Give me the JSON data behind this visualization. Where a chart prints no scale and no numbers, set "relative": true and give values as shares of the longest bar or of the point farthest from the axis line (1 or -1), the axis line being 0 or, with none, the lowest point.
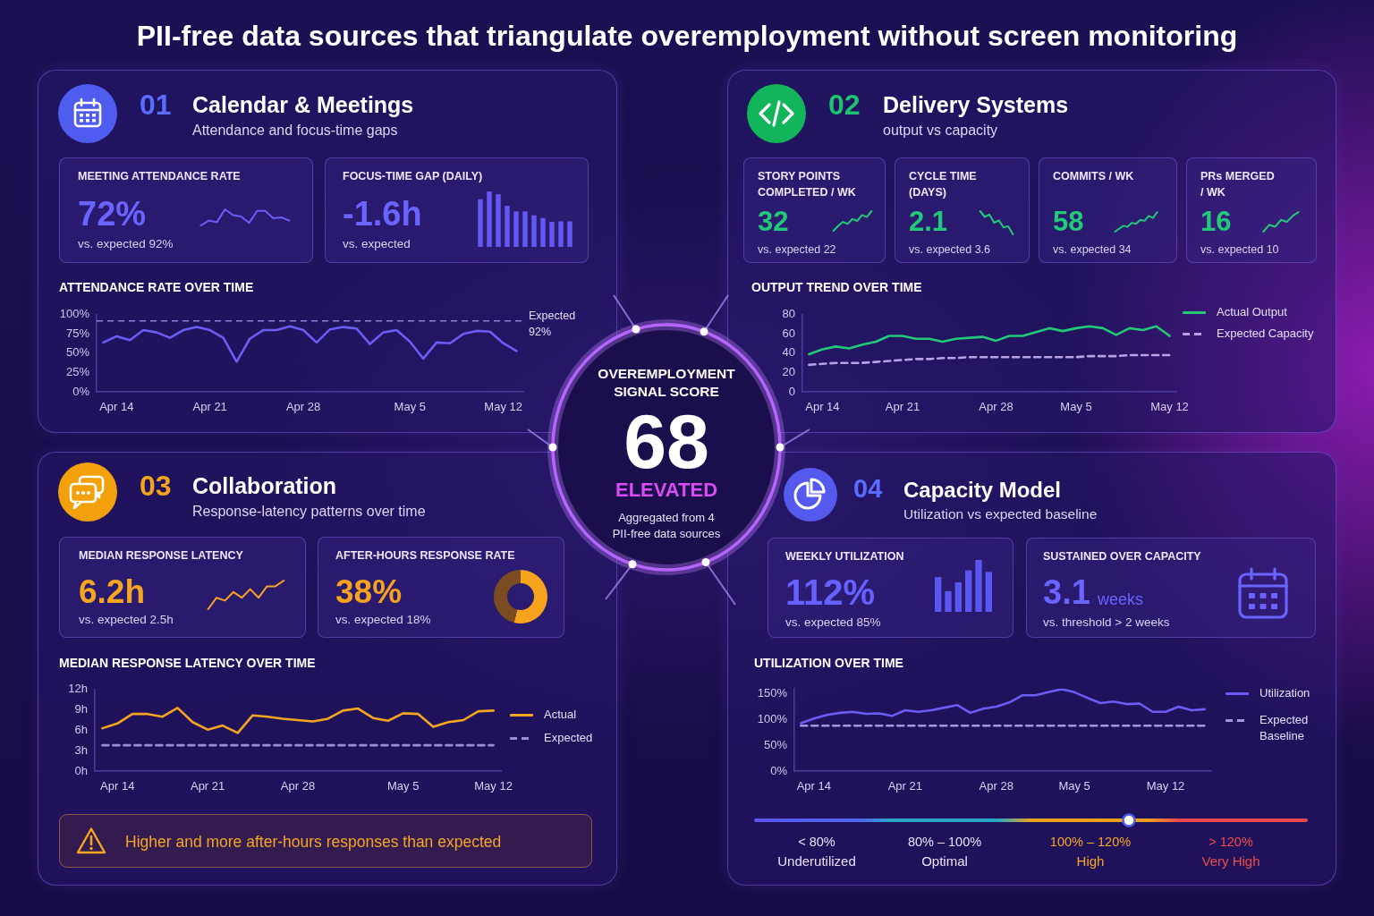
{
  "chart_data": [
    {
      "type": "other",
      "title": "PII-free data sources that triangulate overemployment without screen monitoring"
    },
    {
      "type": "other",
      "title": "Calendar & Meetings",
      "subtitle": "Attendance and focus-time gaps",
      "annotations": [
        "01"
      ]
    },
    {
      "type": "other",
      "title": "MEETING ATTENDANCE RATE",
      "annotations": [
        "72%",
        "vs. expected 92%"
      ]
    },
    {
      "type": "line",
      "relative": true,
      "categories": [
        null,
        null,
        null,
        null,
        null,
        null,
        null,
        null,
        null,
        null,
        null,
        null
      ],
      "color": "#6b5cf6",
      "values": [
        0,
        0.3,
        0.2,
        1,
        0.64,
        0.56,
        0.16,
        0.9,
        0.9,
        0.44,
        0.5,
        0.3
      ]
    },
    {
      "type": "other",
      "title": "FOCUS-TIME GAP (DAILY)",
      "annotations": [
        "-1.6h",
        "vs. expected"
      ]
    },
    {
      "type": "bar",
      "relative": true,
      "categories": [
        null,
        null,
        null,
        null,
        null,
        null,
        null,
        null,
        null,
        null,
        null
      ],
      "color": "#6358f0",
      "values": [
        0.86,
        1,
        0.95,
        0.74,
        0.64,
        0.64,
        0.57,
        0.52,
        0.45,
        0.46,
        0.46
      ]
    },
    {
      "type": "line",
      "title": "ATTENDANCE RATE OVER TIME",
      "categories": [
        null,
        "Apr 14",
        null,
        null,
        null,
        null,
        null,
        null,
        "Apr 21",
        null,
        null,
        null,
        null,
        null,
        null,
        "Apr 28",
        null,
        null,
        null,
        null,
        null,
        null,
        null,
        "May 5",
        null,
        null,
        null,
        null,
        null,
        null,
        "May 12",
        null
      ],
      "color": "#6b5cf6",
      "values": [
        64,
        72,
        67,
        80,
        77,
        70,
        80,
        84,
        80,
        70,
        39,
        69,
        80,
        80,
        85,
        80,
        64,
        81,
        84,
        82,
        62,
        77,
        80,
        65,
        43,
        64,
        63,
        75,
        79,
        78,
        63,
        53
      ],
      "ylim": [
        0,
        100
      ],
      "yticks": [
        {
          "value": 0,
          "label": "0%"
        },
        {
          "value": 25,
          "label": "25%"
        },
        {
          "value": 50,
          "label": "50%"
        },
        {
          "value": 75,
          "label": "75%"
        },
        {
          "value": 100,
          "label": "100%"
        }
      ],
      "ref_lines": [
        {
          "axis": "y",
          "value": 92,
          "label": "Expected 92%",
          "color": "#8c80d9",
          "line_style": "dashed"
        }
      ]
    },
    {
      "type": "other",
      "title": "Delivery Systems",
      "subtitle": "output vs capacity",
      "annotations": [
        "02"
      ]
    },
    {
      "type": "other",
      "title": "STORY POINTS COMPLETED / WK",
      "annotations": [
        "32",
        "vs. expected 22"
      ]
    },
    {
      "type": "line",
      "relative": true,
      "categories": [
        null,
        null,
        null,
        null,
        null,
        null,
        null,
        null,
        null
      ],
      "color": "#22c978",
      "values": [
        0,
        0.25,
        0.45,
        0.35,
        0.6,
        0.5,
        0.8,
        0.7,
        1
      ]
    },
    {
      "type": "other",
      "title": "CYCLE TIME (DAYS)",
      "annotations": [
        "2.1",
        "vs. expected 3.6"
      ]
    },
    {
      "type": "line",
      "relative": true,
      "categories": [
        null,
        null,
        null,
        null,
        null,
        null,
        null,
        null
      ],
      "color": "#22c978",
      "values": [
        1,
        0.75,
        0.85,
        0.5,
        0.6,
        0.3,
        0.35,
        0
      ]
    },
    {
      "type": "other",
      "title": "COMMITS / WK",
      "annotations": [
        "58",
        "vs. expected 34"
      ]
    },
    {
      "type": "line",
      "relative": true,
      "categories": [
        null,
        null,
        null,
        null,
        null,
        null,
        null,
        null,
        null,
        null,
        null
      ],
      "color": "#22c978",
      "values": [
        0,
        0.15,
        0.3,
        0.25,
        0.45,
        0.4,
        0.6,
        0.55,
        0.8,
        0.7,
        1
      ]
    },
    {
      "type": "other",
      "title": "PRs MERGED / WK",
      "annotations": [
        "16",
        "vs. expected 10"
      ]
    },
    {
      "type": "line",
      "relative": true,
      "categories": [
        null,
        null,
        null,
        null,
        null,
        null,
        null
      ],
      "color": "#22c978",
      "values": [
        0,
        0.35,
        0.25,
        0.6,
        0.5,
        0.8,
        1
      ]
    },
    {
      "type": "line",
      "title": "OUTPUT TREND OVER TIME",
      "categories": [
        null,
        "Apr 14",
        null,
        null,
        null,
        null,
        null,
        "Apr 21",
        null,
        null,
        null,
        null,
        null,
        null,
        "Apr 28",
        null,
        null,
        null,
        null,
        null,
        "May 5",
        null,
        null,
        null,
        null,
        null,
        null,
        "May 12"
      ],
      "series": [
        {
          "name": "Actual Output",
          "color": "#22c978",
          "values": [
            39,
            44,
            47,
            45,
            49,
            52,
            58,
            58,
            55,
            55,
            52,
            55,
            56,
            57,
            53,
            58,
            58,
            62,
            66,
            63,
            66,
            68,
            66,
            59,
            66,
            64,
            68,
            58
          ]
        },
        {
          "name": "Expected Capacity",
          "color": "#b7a2e6",
          "line_style": "dashed",
          "values": [
            28,
            29,
            30,
            30,
            30,
            31,
            32,
            33,
            34,
            34,
            35,
            35,
            36,
            36,
            36,
            36,
            36,
            36,
            36,
            36,
            36,
            37,
            37,
            37,
            38,
            38,
            38,
            38
          ]
        }
      ],
      "ylim": [
        0,
        80
      ],
      "yticks": [
        0,
        20,
        40,
        60,
        80
      ],
      "legend": "right"
    },
    {
      "type": "other",
      "title": "OVEREMPLOYMENT SIGNAL SCORE",
      "annotations": [
        "68",
        "ELEVATED",
        "Aggregated from 4 PII-free data sources"
      ]
    },
    {
      "type": "other",
      "title": "Collaboration",
      "subtitle": "Response-latency patterns over time",
      "annotations": [
        "03"
      ]
    },
    {
      "type": "other",
      "title": "MEDIAN RESPONSE LATENCY",
      "annotations": [
        "6.2h",
        "vs. expected 2.5h"
      ]
    },
    {
      "type": "line",
      "relative": true,
      "categories": [
        null,
        null,
        null,
        null,
        null,
        null,
        null,
        null,
        null,
        null
      ],
      "color": "#f5a51f",
      "values": [
        0,
        0.4,
        0.3,
        0.6,
        0.4,
        0.7,
        0.4,
        0.8,
        0.8,
        1
      ]
    },
    {
      "type": "other",
      "title": "AFTER-HOURS RESPONSE RATE",
      "annotations": [
        "38%",
        "vs. expected 18%"
      ]
    },
    {
      "type": "donut",
      "categories": [
        null,
        null
      ],
      "values": [
        54,
        46
      ],
      "colors": [
        "#f5a31c",
        "#7b4c22"
      ]
    },
    {
      "type": "line",
      "title": "MEDIAN RESPONSE LATENCY OVER TIME",
      "categories": [
        null,
        "Apr 14",
        null,
        null,
        null,
        null,
        null,
        "Apr 21",
        null,
        null,
        null,
        null,
        null,
        "Apr 28",
        null,
        null,
        null,
        null,
        null,
        null,
        "May 5",
        null,
        null,
        null,
        null,
        null,
        "May 12"
      ],
      "series": [
        {
          "name": "Actual",
          "color": "#f5a51f",
          "values": [
            6.3,
            7.0,
            8.4,
            8.4,
            8.0,
            9.3,
            7.2,
            6.1,
            6.7,
            5.6,
            8.2,
            8.0,
            7.7,
            7.5,
            7.3,
            7.7,
            8.9,
            9.2,
            7.8,
            7.4,
            8.5,
            8.4,
            6.5,
            7.2,
            7.5,
            8.8,
            8.9
          ]
        },
        {
          "name": "Expected",
          "color": "#9a8fd1",
          "line_style": "dashed",
          "values": [
            3.8,
            3.8,
            3.8,
            3.8,
            3.8,
            3.8,
            3.8,
            3.8,
            3.8,
            3.8,
            3.8,
            3.8,
            3.8,
            3.8,
            3.8,
            3.8,
            3.8,
            3.8,
            3.8,
            3.8,
            3.8,
            3.8,
            3.8,
            3.8,
            3.8,
            3.8,
            3.8
          ]
        }
      ],
      "ylim": [
        0,
        12
      ],
      "yticks": [
        {
          "value": 0,
          "label": "0h"
        },
        {
          "value": 3,
          "label": "3h"
        },
        {
          "value": 6,
          "label": "6h"
        },
        {
          "value": 9,
          "label": "9h"
        },
        {
          "value": 12,
          "label": "12h"
        }
      ],
      "legend": "right"
    },
    {
      "type": "other",
      "annotations": [
        "Higher and more after-hours responses than expected"
      ]
    },
    {
      "type": "other",
      "title": "Capacity Model",
      "subtitle": "Utilization vs expected baseline",
      "annotations": [
        "04"
      ]
    },
    {
      "type": "other",
      "title": "WEEKLY UTILIZATION",
      "annotations": [
        "112%",
        "vs. expected 85%"
      ]
    },
    {
      "type": "bar",
      "relative": true,
      "categories": [
        null,
        null,
        null,
        null,
        null,
        null
      ],
      "color": "#5b55f2",
      "values": [
        0.67,
        0.4,
        0.57,
        0.8,
        1,
        0.77
      ]
    },
    {
      "type": "other",
      "title": "SUSTAINED OVER CAPACITY",
      "annotations": [
        "3.1",
        "weeks",
        "vs. threshold > 2 weeks"
      ]
    },
    {
      "type": "line",
      "title": "UTILIZATION OVER TIME",
      "categories": [
        null,
        "Apr 14",
        null,
        null,
        null,
        null,
        null,
        null,
        "Apr 21",
        null,
        null,
        null,
        null,
        null,
        null,
        "Apr 28",
        null,
        null,
        null,
        null,
        null,
        "May 5",
        null,
        null,
        null,
        null,
        null,
        null,
        "May 12",
        null,
        null,
        null
      ],
      "series": [
        {
          "name": "Utilization",
          "color": "#6b5cf6",
          "values": [
            93,
            102,
            109,
            113,
            115,
            111,
            112,
            107,
            118,
            115,
            118,
            123,
            128,
            113,
            121,
            125,
            133,
            147,
            147,
            153,
            159,
            153,
            142,
            132,
            135,
            130,
            131,
            115,
            115,
            125,
            118,
            120
          ]
        },
        {
          "name": "Expected Baseline",
          "color": "#a497de",
          "line_style": "dashed",
          "values": [
            88,
            88,
            88,
            88,
            88,
            88,
            88,
            88,
            88,
            88,
            88,
            88,
            88,
            88,
            88,
            88,
            88,
            88,
            88,
            88,
            88,
            88,
            88,
            88,
            88,
            88,
            88,
            88,
            88,
            88,
            88,
            88
          ]
        }
      ],
      "ylim": [
        0,
        160
      ],
      "yticks": [
        {
          "value": 0,
          "label": "0%"
        },
        {
          "value": 50,
          "label": "50%"
        },
        {
          "value": 100,
          "label": "100%"
        },
        {
          "value": 150,
          "label": "150%"
        }
      ],
      "legend": "right"
    },
    {
      "type": "other",
      "annotations": [
        "< 80%",
        "Underutilized",
        "80% – 100%",
        "Optimal",
        "100% – 120%",
        "High",
        "> 120%",
        "Very High"
      ]
    }
  ]
}
